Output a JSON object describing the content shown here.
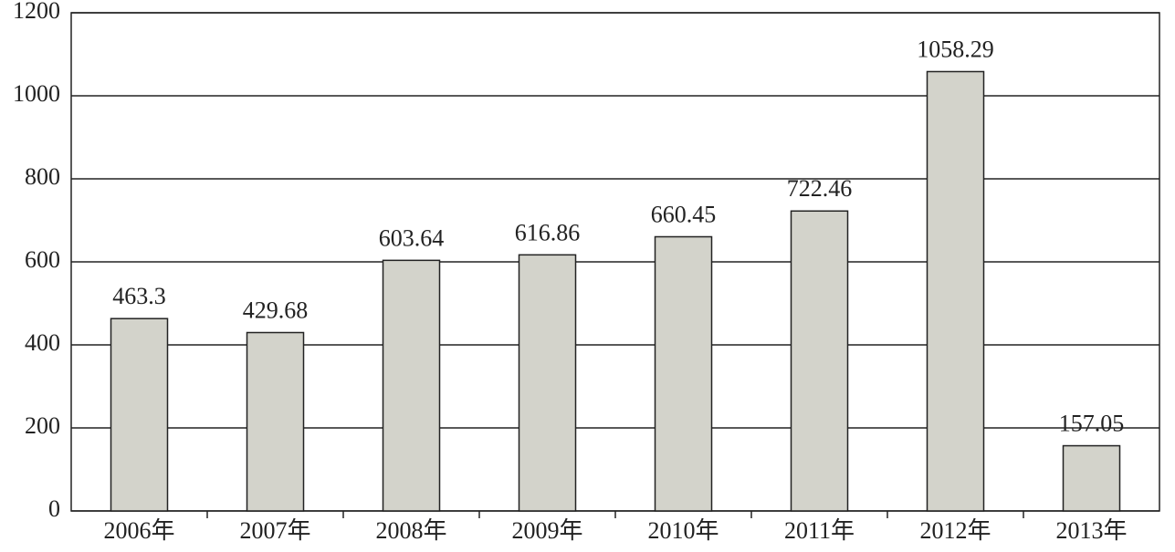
{
  "chart_data": {
    "type": "bar",
    "categories": [
      "2006年",
      "2007年",
      "2008年",
      "2009年",
      "2010年",
      "2011年",
      "2012年",
      "2013年"
    ],
    "values": [
      463.3,
      429.68,
      603.64,
      616.86,
      660.45,
      722.46,
      1058.29,
      157.05
    ],
    "color": "#d3d3cb",
    "ylim": [
      0,
      1200
    ],
    "yticks": [
      0,
      200,
      400,
      600,
      800,
      1000,
      1200
    ],
    "grid": true
  }
}
